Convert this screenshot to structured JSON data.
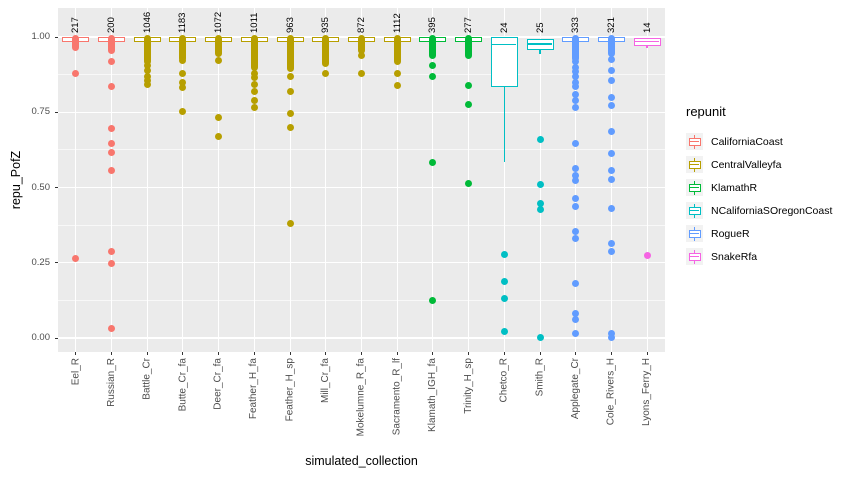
{
  "axes": {
    "x_title": "simulated_collection",
    "y_title": "repu_PofZ",
    "y_tick_labels": [
      "0.00",
      "0.25",
      "0.50",
      "0.75",
      "1.00"
    ]
  },
  "legend": {
    "title": "repunit",
    "key_background": "#F2F2F2",
    "items": [
      {
        "label": "CaliforniaCoast",
        "color": "#F8766D"
      },
      {
        "label": "CentralValleyfa",
        "color": "#B79F00"
      },
      {
        "label": "KlamathR",
        "color": "#00BA38"
      },
      {
        "label": "NCaliforniaSOregonCoast",
        "color": "#00BFC4"
      },
      {
        "label": "RogueR",
        "color": "#619CFF"
      },
      {
        "label": "SnakeRfa",
        "color": "#F564E3"
      }
    ]
  },
  "style": {
    "panel_background": "#EBEBEB",
    "gridline_color": "#FFFFFF",
    "tick_color": "#333333",
    "axis_text_color": "#4D4D4D"
  },
  "chart_data": {
    "type": "boxplot",
    "title": "",
    "xlabel": "simulated_collection",
    "ylabel": "repu_PofZ",
    "ylim": [
      0,
      1
    ],
    "y_major": [
      0,
      0.25,
      0.5,
      0.75,
      1.0
    ],
    "y_minor": [
      0.125,
      0.375,
      0.625,
      0.875
    ],
    "legend_title": "repunit",
    "legend_position": "right",
    "grid": true,
    "categories": [
      "Eel_R",
      "Russian_R",
      "Battle_Cr",
      "Butte_Cr_fa",
      "Deer_Cr_fa",
      "Feather_H_fa",
      "Feather_H_sp",
      "Mill_Cr_fa",
      "Mokelumne_R_fa",
      "Sacramento_R_lf",
      "Klamath_IGH_fa",
      "Trinity_H_sp",
      "Chetco_R",
      "Smith_R",
      "Applegate_Cr",
      "Cole_Rivers_H",
      "Lyons_Ferry_H"
    ],
    "counts": [
      217,
      200,
      1046,
      1183,
      1072,
      1011,
      963,
      935,
      872,
      1112,
      395,
      277,
      24,
      25,
      333,
      321,
      14
    ],
    "boxes": [
      {
        "collection": "Eel_R",
        "repunit": "CaliforniaCoast",
        "color": "#F8766D",
        "count": 217,
        "q1": 0.992,
        "median": 0.999,
        "q3": 1.0,
        "whisker_low": 0.992,
        "whisker_high": 1.0,
        "cluster": [
          0.995,
          0.965
        ],
        "outliers": [
          0.878,
          0.263
        ]
      },
      {
        "collection": "Russian_R",
        "repunit": "CaliforniaCoast",
        "color": "#F8766D",
        "count": 200,
        "q1": 0.992,
        "median": 0.999,
        "q3": 1.0,
        "whisker_low": 0.992,
        "whisker_high": 1.0,
        "cluster": [
          0.995,
          0.955
        ],
        "outliers": [
          0.917,
          0.835,
          0.697,
          0.647,
          0.616,
          0.556,
          0.287,
          0.248,
          0.03
        ]
      },
      {
        "collection": "Battle_Cr",
        "repunit": "CentralValleyfa",
        "color": "#B79F00",
        "count": 1046,
        "q1": 0.992,
        "median": 0.999,
        "q3": 1.0,
        "whisker_low": 0.992,
        "whisker_high": 1.0,
        "cluster": [
          0.995,
          0.918
        ],
        "outliers": [
          0.905,
          0.888,
          0.868,
          0.855,
          0.841
        ]
      },
      {
        "collection": "Butte_Cr_fa",
        "repunit": "CentralValleyfa",
        "color": "#B79F00",
        "count": 1183,
        "q1": 0.992,
        "median": 0.999,
        "q3": 1.0,
        "whisker_low": 0.992,
        "whisker_high": 1.0,
        "cluster": [
          0.995,
          0.93
        ],
        "outliers": [
          0.922,
          0.88,
          0.85,
          0.833,
          0.751
        ]
      },
      {
        "collection": "Deer_Cr_fa",
        "repunit": "CentralValleyfa",
        "color": "#B79F00",
        "count": 1072,
        "q1": 0.992,
        "median": 0.999,
        "q3": 1.0,
        "whisker_low": 0.992,
        "whisker_high": 1.0,
        "cluster": [
          0.995,
          0.944
        ],
        "outliers": [
          0.922,
          0.733,
          0.668
        ]
      },
      {
        "collection": "Feather_H_fa",
        "repunit": "CentralValleyfa",
        "color": "#B79F00",
        "count": 1011,
        "q1": 0.992,
        "median": 0.999,
        "q3": 1.0,
        "whisker_low": 0.992,
        "whisker_high": 1.0,
        "cluster": [
          0.995,
          0.9
        ],
        "outliers": [
          0.88,
          0.865,
          0.843,
          0.82,
          0.79,
          0.765
        ]
      },
      {
        "collection": "Feather_H_sp",
        "repunit": "CentralValleyfa",
        "color": "#B79F00",
        "count": 963,
        "q1": 0.992,
        "median": 0.999,
        "q3": 1.0,
        "whisker_low": 0.992,
        "whisker_high": 1.0,
        "cluster": [
          0.995,
          0.895
        ],
        "outliers": [
          0.868,
          0.818,
          0.747,
          0.7,
          0.382
        ]
      },
      {
        "collection": "Mill_Cr_fa",
        "repunit": "CentralValleyfa",
        "color": "#B79F00",
        "count": 935,
        "q1": 0.992,
        "median": 0.999,
        "q3": 1.0,
        "whisker_low": 0.992,
        "whisker_high": 1.0,
        "cluster": [
          0.995,
          0.912
        ],
        "outliers": [
          0.878
        ]
      },
      {
        "collection": "Mokelumne_R_fa",
        "repunit": "CentralValleyfa",
        "color": "#B79F00",
        "count": 872,
        "q1": 0.992,
        "median": 0.999,
        "q3": 1.0,
        "whisker_low": 0.992,
        "whisker_high": 1.0,
        "cluster": [
          0.995,
          0.955
        ],
        "outliers": [
          0.938,
          0.878
        ]
      },
      {
        "collection": "Sacramento_R_lf",
        "repunit": "CentralValleyfa",
        "color": "#B79F00",
        "count": 1112,
        "q1": 0.992,
        "median": 0.999,
        "q3": 1.0,
        "whisker_low": 0.992,
        "whisker_high": 1.0,
        "cluster": [
          0.995,
          0.92
        ],
        "outliers": [
          0.878,
          0.84
        ]
      },
      {
        "collection": "Klamath_IGH_fa",
        "repunit": "KlamathR",
        "color": "#00BA38",
        "count": 395,
        "q1": 0.992,
        "median": 0.999,
        "q3": 1.0,
        "whisker_low": 0.992,
        "whisker_high": 1.0,
        "cluster": [
          0.995,
          0.94
        ],
        "outliers": [
          0.905,
          0.868,
          0.582,
          0.124
        ]
      },
      {
        "collection": "Trinity_H_sp",
        "repunit": "KlamathR",
        "color": "#00BA38",
        "count": 277,
        "q1": 0.992,
        "median": 0.999,
        "q3": 1.0,
        "whisker_low": 0.992,
        "whisker_high": 1.0,
        "cluster": [
          0.995,
          0.938
        ],
        "outliers": [
          0.84,
          0.775,
          0.512
        ]
      },
      {
        "collection": "Chetco_R",
        "repunit": "NCaliforniaSOregonCoast",
        "color": "#00BFC4",
        "count": 24,
        "q1": 0.833,
        "median": 0.975,
        "q3": 0.999,
        "whisker_low": 0.586,
        "whisker_high": 1.0,
        "cluster": null,
        "outliers": [
          0.276,
          0.189,
          0.131,
          0.021
        ]
      },
      {
        "collection": "Smith_R",
        "repunit": "NCaliforniaSOregonCoast",
        "color": "#00BFC4",
        "count": 25,
        "q1": 0.957,
        "median": 0.977,
        "q3": 0.995,
        "whisker_low": 0.943,
        "whisker_high": 1.0,
        "cluster": null,
        "outliers": [
          0.66,
          0.51,
          0.447,
          0.428,
          0.001
        ]
      },
      {
        "collection": "Applegate_Cr",
        "repunit": "RogueR",
        "color": "#619CFF",
        "count": 333,
        "q1": 0.992,
        "median": 0.999,
        "q3": 1.0,
        "whisker_low": 0.992,
        "whisker_high": 1.0,
        "cluster": [
          0.995,
          0.93
        ],
        "outliers": [
          0.92,
          0.9,
          0.885,
          0.868,
          0.85,
          0.835,
          0.81,
          0.79,
          0.765,
          0.647,
          0.564,
          0.54,
          0.524,
          0.464,
          0.436,
          0.353,
          0.33,
          0.182,
          0.082,
          0.06,
          0.016
        ]
      },
      {
        "collection": "Cole_Rivers_H",
        "repunit": "RogueR",
        "color": "#619CFF",
        "count": 321,
        "q1": 0.992,
        "median": 0.999,
        "q3": 1.0,
        "whisker_low": 0.992,
        "whisker_high": 1.0,
        "cluster": [
          0.995,
          0.945
        ],
        "outliers": [
          0.924,
          0.89,
          0.857,
          0.8,
          0.774,
          0.687,
          0.614,
          0.558,
          0.525,
          0.43,
          0.315,
          0.287,
          0.016,
          0.001
        ]
      },
      {
        "collection": "Lyons_Ferry_H",
        "repunit": "SnakeRfa",
        "color": "#F564E3",
        "count": 14,
        "q1": 0.97,
        "median": 0.985,
        "q3": 0.998,
        "whisker_low": 0.962,
        "whisker_high": 1.0,
        "cluster": null,
        "outliers": [
          0.275
        ]
      }
    ]
  }
}
